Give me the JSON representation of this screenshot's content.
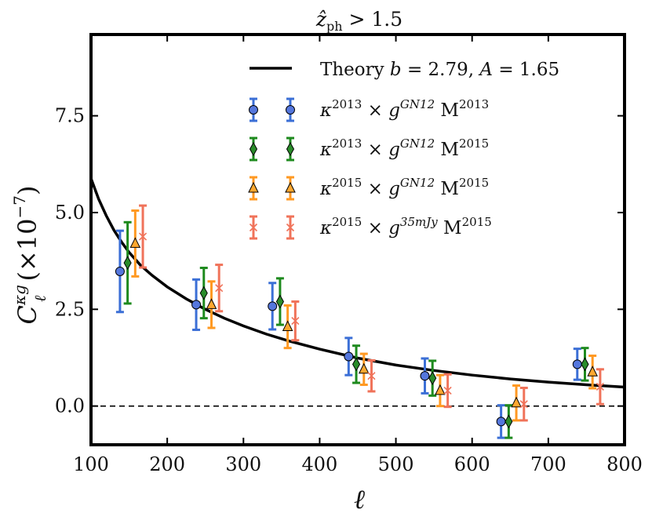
{
  "chart_data": {
    "type": "scatter",
    "title": "ẑ_ph > 1.5",
    "title_parts": {
      "main": "ẑ",
      "sub": "ph",
      "rest": " > 1.5"
    },
    "xlabel": "ℓ",
    "ylabel_parts": {
      "main": "C",
      "sub": "ℓ",
      "sup": "κg",
      "rest": " (×10",
      "exp": "−7",
      "close": ")"
    },
    "xlim": [
      100,
      800
    ],
    "ylim": [
      -1.0,
      9.6
    ],
    "xticks": [
      100,
      200,
      300,
      400,
      500,
      600,
      700,
      800
    ],
    "yticks": [
      0.0,
      2.5,
      5.0,
      7.5
    ],
    "ytick_labels": [
      "0.0",
      "2.5",
      "5.0",
      "7.5"
    ],
    "zero_line": 0.0,
    "theory": {
      "label": "Theory b = 2.79, A = 1.65",
      "label_parts": {
        "pre": "Theory ",
        "b": "b",
        "bval": " = 2.79, ",
        "A": "A",
        "Aval": " = 1.65"
      },
      "color": "#000000",
      "x": [
        100,
        110,
        120,
        130,
        140,
        150,
        165,
        180,
        200,
        225,
        250,
        275,
        300,
        330,
        360,
        400,
        450,
        500,
        550,
        600,
        650,
        700,
        750,
        800
      ],
      "y": [
        5.88,
        5.35,
        4.92,
        4.55,
        4.24,
        3.97,
        3.64,
        3.38,
        3.08,
        2.77,
        2.5,
        2.27,
        2.07,
        1.86,
        1.68,
        1.47,
        1.24,
        1.06,
        0.92,
        0.8,
        0.7,
        0.62,
        0.55,
        0.49
      ]
    },
    "series": [
      {
        "name": "κ2013 × gGN12 M2013",
        "label_parts": {
          "k": "κ",
          "ksup": "2013",
          "x": " × ",
          "g": "g",
          "gsup": "GN12",
          "m": "  M",
          "msup": "2013"
        },
        "color": "#3b6fd6",
        "fill": "#5577dd",
        "marker": "circle",
        "x": [
          138,
          238,
          338,
          438,
          538,
          638,
          738
        ],
        "y": [
          3.48,
          2.62,
          2.58,
          1.28,
          0.78,
          -0.4,
          1.08
        ],
        "yerr": [
          1.05,
          0.65,
          0.6,
          0.48,
          0.45,
          0.42,
          0.4
        ]
      },
      {
        "name": "κ2013 × gGN12 M2015",
        "label_parts": {
          "k": "κ",
          "ksup": "2013",
          "x": " × ",
          "g": "g",
          "gsup": "GN12",
          "m": " M",
          "msup": "2015"
        },
        "color": "#1e8a1e",
        "fill": "#2a8c2a",
        "marker": "diamond",
        "x": [
          148,
          248,
          348,
          448,
          548,
          648,
          748
        ],
        "y": [
          3.7,
          2.92,
          2.7,
          1.08,
          0.72,
          -0.4,
          1.08
        ],
        "yerr": [
          1.05,
          0.65,
          0.6,
          0.48,
          0.45,
          0.42,
          0.42
        ]
      },
      {
        "name": "κ2015 × gGN12 M2015",
        "label_parts": {
          "k": "κ",
          "ksup": "2015",
          "x": " × ",
          "g": "g",
          "gsup": "GN12",
          "m": "  M",
          "msup": "2015"
        },
        "color": "#ff9922",
        "fill": "#ffa830",
        "marker": "triangle",
        "x": [
          158,
          258,
          358,
          458,
          558,
          658,
          758
        ],
        "y": [
          4.2,
          2.62,
          2.05,
          0.95,
          0.4,
          0.08,
          0.88
        ],
        "yerr": [
          0.85,
          0.6,
          0.55,
          0.4,
          0.4,
          0.45,
          0.42
        ]
      },
      {
        "name": "κ2015 × g35mJy M2015",
        "label_parts": {
          "k": "κ",
          "ksup": "2015",
          "x": " × ",
          "g": "g",
          "gsup": "35mJy",
          "m": " M",
          "msup": "2015"
        },
        "color": "#f0735a",
        "fill": "#f0735a",
        "marker": "x",
        "x": [
          168,
          268,
          368,
          468,
          568,
          668,
          768
        ],
        "y": [
          4.38,
          3.05,
          2.2,
          0.78,
          0.4,
          0.05,
          0.5
        ],
        "yerr": [
          0.8,
          0.6,
          0.5,
          0.4,
          0.42,
          0.42,
          0.45
        ]
      }
    ]
  }
}
